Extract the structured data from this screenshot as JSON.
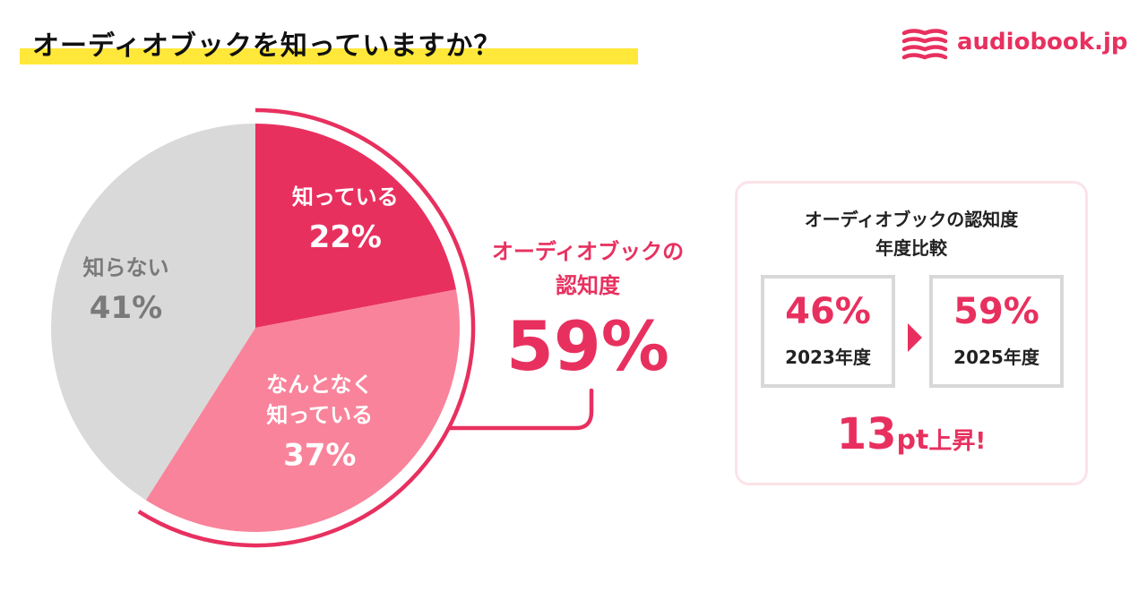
{
  "colors": {
    "accent": "#e8305f",
    "pink": "#f9839a",
    "gray": "#d9d9d9",
    "gray_text": "#7a7a7a",
    "highlight": "#ffe83a"
  },
  "header": {
    "title": "オーディオブックを知っていますか？",
    "logo_text": "audiobook.jp",
    "logo_icon": "book-stack-icon"
  },
  "chart_data": {
    "type": "pie",
    "slices": [
      {
        "label": "知っている",
        "value": 22,
        "value_label": "22%",
        "color": "#e8305f"
      },
      {
        "label": "なんとなく 知っている",
        "label_lines": [
          "なんとなく",
          "知っている"
        ],
        "value": 37,
        "value_label": "37%",
        "color": "#f9839a"
      },
      {
        "label": "知らない",
        "value": 41,
        "value_label": "41%",
        "color": "#d9d9d9"
      }
    ],
    "start": "12 o'clock",
    "direction": "clockwise"
  },
  "callout": {
    "label_lines": [
      "オーディオブックの",
      "認知度"
    ],
    "value": "59%"
  },
  "comparison": {
    "title_lines": [
      "オーディオブックの認知度",
      "年度比較"
    ],
    "before": {
      "value": "46%",
      "year": "2023年度"
    },
    "after": {
      "value": "59%",
      "year": "2025年度"
    },
    "increase_number": "13",
    "increase_unit": "pt",
    "increase_suffix": "上昇!"
  }
}
